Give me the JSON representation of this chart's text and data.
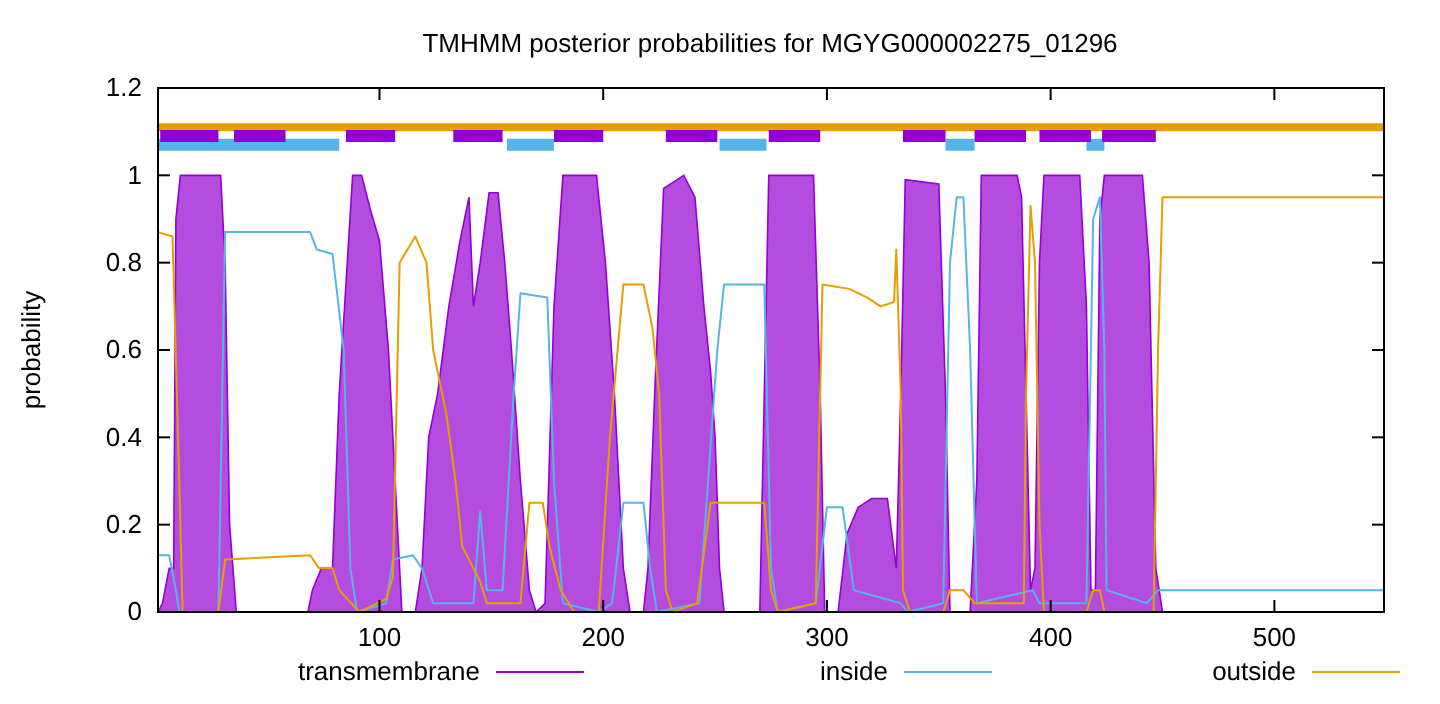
{
  "chart_data": {
    "type": "line",
    "title": "TMHMM posterior probabilities for MGYG000002275_01296",
    "ylabel": "probability",
    "xlim": [
      1,
      549
    ],
    "xticks": [
      100,
      200,
      300,
      400,
      500
    ],
    "ylim": [
      0,
      1.2
    ],
    "yticks": [
      0,
      0.2,
      0.4,
      0.6,
      0.8,
      1,
      1.2
    ],
    "grid": false,
    "legend": "bottom",
    "ref_lines": [
      {
        "axis": "y",
        "value": 1.11,
        "color": "#e69f00"
      }
    ],
    "series": [
      {
        "name": "transmembrane",
        "type": "area",
        "color": "#9400d3",
        "x": [
          1,
          3,
          6,
          8,
          9,
          11,
          29,
          31,
          33,
          36,
          68,
          70,
          74,
          79,
          82,
          88,
          92,
          96,
          100,
          104,
          107,
          110,
          116,
          119,
          122,
          126,
          131,
          136,
          140,
          142,
          145,
          149,
          153,
          156,
          159,
          163,
          167,
          170,
          174,
          178,
          182,
          197,
          201,
          205,
          209,
          212,
          218,
          220,
          223,
          227,
          236,
          241,
          245,
          248,
          250,
          252,
          254,
          270,
          272,
          274,
          294,
          297,
          299,
          305,
          309,
          314,
          320,
          327,
          331,
          333,
          335,
          350,
          353,
          355,
          364,
          367,
          369,
          385,
          387,
          389,
          391,
          393,
          395,
          397,
          413,
          416,
          418,
          420,
          422,
          424,
          441,
          444,
          447,
          450,
          549
        ],
        "values": [
          0,
          0.02,
          0.1,
          0.1,
          0.9,
          1,
          1,
          0.8,
          0.2,
          0,
          0,
          0.05,
          0.1,
          0.1,
          0.5,
          1,
          1,
          0.92,
          0.85,
          0.6,
          0.3,
          0,
          0,
          0.1,
          0.4,
          0.5,
          0.7,
          0.85,
          0.95,
          0.7,
          0.8,
          0.96,
          0.96,
          0.8,
          0.6,
          0.3,
          0.05,
          0,
          0.02,
          0.7,
          1,
          1,
          0.8,
          0.5,
          0.1,
          0,
          0,
          0.1,
          0.5,
          0.97,
          1,
          0.95,
          0.7,
          0.55,
          0.4,
          0.1,
          0,
          0,
          0.5,
          1,
          1,
          0.5,
          0,
          0,
          0.18,
          0.24,
          0.26,
          0.26,
          0.1,
          0.5,
          0.99,
          0.98,
          0.5,
          0,
          0,
          0.3,
          1,
          1,
          0.95,
          0.5,
          0.05,
          0.1,
          0.8,
          1,
          1,
          0.7,
          0.05,
          0.05,
          0.9,
          1,
          1,
          0.8,
          0.1,
          0,
          0
        ]
      },
      {
        "name": "inside",
        "type": "line",
        "color": "#56b4e9",
        "x": [
          1,
          6,
          9,
          10.5,
          28,
          31,
          69,
          72,
          79,
          84,
          87,
          90,
          103,
          106,
          115,
          119,
          124,
          142,
          145,
          148,
          155,
          160,
          163,
          175,
          178,
          182,
          198,
          204,
          209,
          218,
          221,
          224,
          243,
          251,
          254,
          272,
          275,
          278,
          295,
          300,
          307,
          312,
          333,
          336,
          352,
          355,
          358,
          361,
          364,
          367,
          392,
          395,
          416,
          419,
          422,
          424,
          425,
          443,
          448,
          549
        ],
        "values": [
          0.13,
          0.13,
          0.05,
          0,
          0,
          0.87,
          0.87,
          0.83,
          0.82,
          0.6,
          0.1,
          0,
          0.02,
          0.12,
          0.13,
          0.1,
          0.02,
          0.02,
          0.23,
          0.05,
          0.05,
          0.5,
          0.73,
          0.72,
          0.3,
          0.02,
          0,
          0.02,
          0.25,
          0.25,
          0.1,
          0,
          0.02,
          0.6,
          0.75,
          0.75,
          0.1,
          0,
          0.02,
          0.24,
          0.24,
          0.05,
          0.02,
          0,
          0.02,
          0.8,
          0.95,
          0.95,
          0.6,
          0.02,
          0.05,
          0.02,
          0.02,
          0.9,
          0.95,
          0.6,
          0.05,
          0.02,
          0.05,
          0.05
        ]
      },
      {
        "name": "outside",
        "type": "line",
        "color": "#e69f00",
        "x": [
          1,
          7.5,
          10.5,
          12,
          28,
          31,
          69,
          73,
          79,
          82,
          91,
          103,
          106,
          109,
          116,
          121,
          124,
          130,
          134,
          137,
          142,
          145,
          148,
          163,
          167,
          173,
          176,
          181,
          187,
          198,
          203,
          209,
          218,
          222,
          225,
          228,
          231,
          242,
          248,
          272,
          275,
          278,
          295,
          298,
          310,
          318,
          324,
          330,
          331,
          333,
          334,
          337,
          352,
          355,
          361,
          366,
          388,
          389,
          391,
          393,
          395,
          397,
          416,
          419,
          422,
          424,
          446,
          448,
          450,
          549
        ],
        "values": [
          0.87,
          0.86,
          0.3,
          0,
          0,
          0.12,
          0.13,
          0.1,
          0.1,
          0.05,
          0,
          0.03,
          0.08,
          0.8,
          0.86,
          0.8,
          0.6,
          0.45,
          0.3,
          0.15,
          0.1,
          0.07,
          0.02,
          0.02,
          0.25,
          0.25,
          0.15,
          0.05,
          0,
          0,
          0.4,
          0.75,
          0.75,
          0.65,
          0.5,
          0.05,
          0,
          0.02,
          0.25,
          0.25,
          0.05,
          0,
          0.02,
          0.75,
          0.74,
          0.72,
          0.7,
          0.71,
          0.83,
          0.5,
          0.05,
          0,
          0,
          0.05,
          0.05,
          0.02,
          0.02,
          0.5,
          0.93,
          0.8,
          0.2,
          0,
          0,
          0.05,
          0.05,
          0,
          0,
          0.6,
          0.95,
          0.95
        ]
      },
      {
        "type": "line",
        "color": "#56b4e9",
        "x": [
          1,
          82,
          null,
          157,
          178,
          null,
          252,
          273,
          null,
          353,
          366,
          null,
          416,
          424
        ],
        "values": [
          1.07,
          1.07,
          null,
          1.07,
          1.07,
          null,
          1.07,
          1.07,
          null,
          1.07,
          1.07,
          null,
          1.07,
          1.07
        ]
      },
      {
        "type": "line",
        "color": "#9400d3",
        "x": [
          2,
          28,
          null,
          35,
          58,
          null,
          85,
          107,
          null,
          133,
          155,
          null,
          178,
          200,
          null,
          228,
          251,
          null,
          274,
          297,
          null,
          334,
          353,
          null,
          366,
          389,
          null,
          395,
          418,
          null,
          423,
          447
        ],
        "values": [
          1.09,
          1.09,
          null,
          1.09,
          1.09,
          null,
          1.09,
          1.09,
          null,
          1.09,
          1.09,
          null,
          1.09,
          1.09,
          null,
          1.09,
          1.09,
          null,
          1.09,
          1.09,
          null,
          1.09,
          1.09,
          null,
          1.09,
          1.09,
          null,
          1.09,
          1.09,
          null,
          1.09,
          1.09
        ]
      }
    ]
  }
}
